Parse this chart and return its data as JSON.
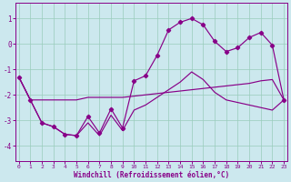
{
  "xlabel": "Windchill (Refroidissement éolien,°C)",
  "bg_color": "#cce8ee",
  "line_color": "#880088",
  "grid_color": "#99ccbb",
  "x_ticks": [
    0,
    1,
    2,
    3,
    4,
    5,
    6,
    7,
    8,
    9,
    10,
    11,
    12,
    13,
    14,
    15,
    16,
    17,
    18,
    19,
    20,
    21,
    22,
    23
  ],
  "y_ticks": [
    -4,
    -3,
    -2,
    -1,
    0,
    1
  ],
  "xlim": [
    -0.3,
    23.3
  ],
  "ylim": [
    -4.6,
    1.6
  ],
  "main_x": [
    0,
    1,
    2,
    3,
    4,
    5,
    6,
    7,
    8,
    9,
    10,
    11,
    12,
    13,
    14,
    15,
    16,
    17,
    18,
    19,
    20,
    21,
    22,
    23
  ],
  "main_y": [
    -1.3,
    -2.2,
    -3.1,
    -3.25,
    -3.55,
    -3.6,
    -2.85,
    -3.5,
    -2.55,
    -3.3,
    -1.45,
    -1.25,
    -0.45,
    0.55,
    0.85,
    1.0,
    0.75,
    0.1,
    -0.3,
    -0.15,
    0.25,
    0.45,
    -0.05,
    -2.2
  ],
  "upper_x": [
    0,
    1,
    2,
    3,
    4,
    5,
    6,
    7,
    8,
    9,
    10,
    11,
    12,
    13,
    14,
    15,
    16,
    17,
    18,
    19,
    20,
    21,
    22,
    23
  ],
  "upper_y": [
    -1.3,
    -2.2,
    -2.2,
    -2.2,
    -2.2,
    -2.2,
    -2.1,
    -2.1,
    -2.1,
    -2.1,
    -2.05,
    -2.0,
    -1.95,
    -1.9,
    -1.85,
    -1.8,
    -1.75,
    -1.7,
    -1.65,
    -1.6,
    -1.55,
    -1.45,
    -1.4,
    -2.2
  ],
  "lower_x": [
    0,
    1,
    2,
    3,
    4,
    5,
    6,
    7,
    8,
    9,
    10,
    11,
    12,
    13,
    14,
    15,
    16,
    17,
    18,
    19,
    20,
    21,
    22,
    23
  ],
  "lower_y": [
    -1.3,
    -2.2,
    -3.1,
    -3.25,
    -3.55,
    -3.6,
    -3.1,
    -3.6,
    -2.8,
    -3.4,
    -2.6,
    -2.4,
    -2.1,
    -1.8,
    -1.5,
    -1.1,
    -1.4,
    -1.9,
    -2.2,
    -2.3,
    -2.4,
    -2.5,
    -2.6,
    -2.2
  ]
}
